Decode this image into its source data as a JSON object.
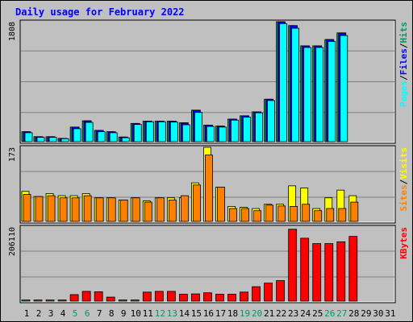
{
  "title": "Daily usage for February 2022",
  "colors": {
    "hits": "#009966",
    "files": "#0000ff",
    "pages": "#00ffff",
    "visits": "#ffff00",
    "sites": "#ff8000",
    "kbytes": "#ff0000",
    "title": "#0000ff",
    "panel": "#c0c0c0",
    "weekend_day": "#009966"
  },
  "axis": {
    "days": [
      "1",
      "2",
      "3",
      "4",
      "5",
      "6",
      "7",
      "8",
      "9",
      "10",
      "11",
      "12",
      "13",
      "14",
      "15",
      "16",
      "17",
      "18",
      "19",
      "20",
      "21",
      "22",
      "23",
      "24",
      "25",
      "26",
      "27",
      "28",
      "29",
      "30",
      "31"
    ],
    "weekend_days": [
      5,
      6,
      12,
      13,
      19,
      20,
      26,
      27
    ]
  },
  "chart_data": [
    {
      "type": "bar",
      "panel": "top",
      "ymax_label": "1808",
      "ylim": [
        0,
        1808
      ],
      "side_labels": [
        {
          "text": "Pages",
          "key": "pages"
        },
        {
          "text": "/",
          "key": "sep"
        },
        {
          "text": "Files",
          "key": "files"
        },
        {
          "text": "/",
          "key": "sep"
        },
        {
          "text": "Hits",
          "key": "hits"
        }
      ],
      "categories": [
        1,
        2,
        3,
        4,
        5,
        6,
        7,
        8,
        9,
        10,
        11,
        12,
        13,
        14,
        15,
        16,
        17,
        18,
        19,
        20,
        21,
        22,
        23,
        24,
        25,
        26,
        27,
        28,
        29,
        30,
        31
      ],
      "series": [
        {
          "key": "hits",
          "values": [
            150,
            75,
            75,
            50,
            220,
            315,
            170,
            150,
            70,
            275,
            310,
            310,
            310,
            285,
            475,
            250,
            235,
            340,
            390,
            450,
            640,
            1808,
            1750,
            1445,
            1445,
            1540,
            1640,
            0,
            0,
            0,
            0
          ]
        },
        {
          "key": "files",
          "values": [
            150,
            75,
            75,
            50,
            220,
            315,
            170,
            150,
            70,
            275,
            310,
            310,
            310,
            285,
            475,
            250,
            235,
            340,
            390,
            450,
            640,
            1808,
            1750,
            1445,
            1445,
            1540,
            1640,
            0,
            0,
            0,
            0
          ]
        },
        {
          "key": "pages",
          "values": [
            135,
            65,
            65,
            45,
            195,
            290,
            150,
            135,
            60,
            260,
            300,
            300,
            295,
            255,
            440,
            230,
            220,
            325,
            370,
            435,
            620,
            1780,
            1710,
            1420,
            1420,
            1510,
            1600,
            0,
            0,
            0,
            0
          ]
        }
      ]
    },
    {
      "type": "bar",
      "panel": "middle",
      "ymax_label": "173",
      "ylim": [
        0,
        173
      ],
      "side_labels": [
        {
          "text": "Sites",
          "key": "sites"
        },
        {
          "text": "/",
          "key": "sep"
        },
        {
          "text": "Visits",
          "key": "visits"
        }
      ],
      "categories": [
        1,
        2,
        3,
        4,
        5,
        6,
        7,
        8,
        9,
        10,
        11,
        12,
        13,
        14,
        15,
        16,
        17,
        18,
        19,
        20,
        21,
        22,
        23,
        24,
        25,
        26,
        27,
        28,
        29,
        30,
        31
      ],
      "series": [
        {
          "key": "visits",
          "values": [
            70,
            58,
            65,
            60,
            60,
            65,
            55,
            55,
            50,
            55,
            48,
            55,
            55,
            55,
            90,
            173,
            80,
            35,
            33,
            30,
            40,
            40,
            83,
            78,
            30,
            55,
            73,
            60,
            0,
            0,
            0
          ]
        },
        {
          "key": "sites",
          "values": [
            63,
            58,
            60,
            55,
            55,
            60,
            55,
            55,
            50,
            55,
            45,
            55,
            50,
            60,
            85,
            155,
            80,
            30,
            30,
            25,
            38,
            36,
            35,
            40,
            25,
            30,
            30,
            45,
            0,
            0,
            0
          ]
        }
      ]
    },
    {
      "type": "bar",
      "panel": "bottom",
      "ymax_label": "206110",
      "ylim": [
        0,
        206110
      ],
      "side_labels": [
        {
          "text": "KBytes",
          "key": "kbytes"
        }
      ],
      "categories": [
        1,
        2,
        3,
        4,
        5,
        6,
        7,
        8,
        9,
        10,
        11,
        12,
        13,
        14,
        15,
        16,
        17,
        18,
        19,
        20,
        21,
        22,
        23,
        24,
        25,
        26,
        27,
        28,
        29,
        30,
        31
      ],
      "series": [
        {
          "key": "kbytes",
          "values": [
            3000,
            3000,
            3000,
            3000,
            18000,
            27000,
            26000,
            11000,
            3000,
            3000,
            25000,
            27000,
            27000,
            19000,
            20000,
            23000,
            19000,
            19000,
            25000,
            40000,
            50000,
            57000,
            200000,
            175000,
            160000,
            160000,
            165000,
            180000,
            0,
            0,
            0
          ]
        }
      ]
    }
  ]
}
